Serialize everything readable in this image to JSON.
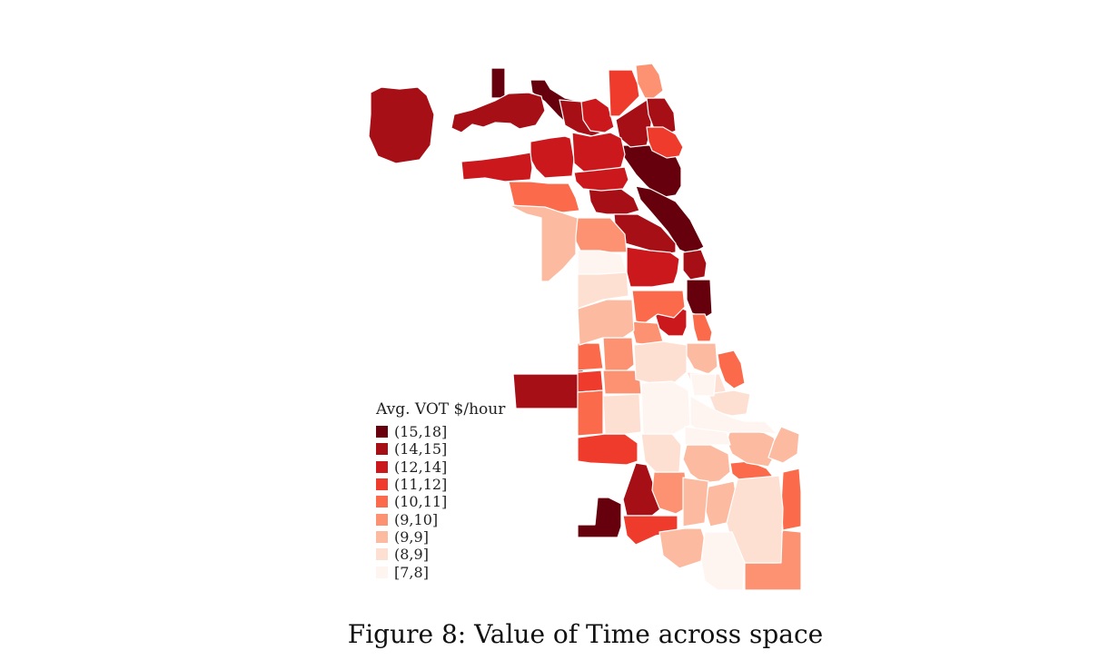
{
  "legend": {
    "title": "Avg. VOT $/hour",
    "items": [
      {
        "label": "(15,18]",
        "color": "#67000d"
      },
      {
        "label": "(14,15]",
        "color": "#a50f15"
      },
      {
        "label": "(12,14]",
        "color": "#cb181d"
      },
      {
        "label": "(11,12]",
        "color": "#ef3b2c"
      },
      {
        "label": "(10,11]",
        "color": "#fb6a4a"
      },
      {
        "label": "(9,10]",
        "color": "#fc9272"
      },
      {
        "label": "(9,9]",
        "color": "#fcbba1"
      },
      {
        "label": "(8,9]",
        "color": "#fee0d2"
      },
      {
        "label": "[7,8]",
        "color": "#fff5f0"
      }
    ]
  },
  "caption": "Figure 8: Value of Time across space"
}
